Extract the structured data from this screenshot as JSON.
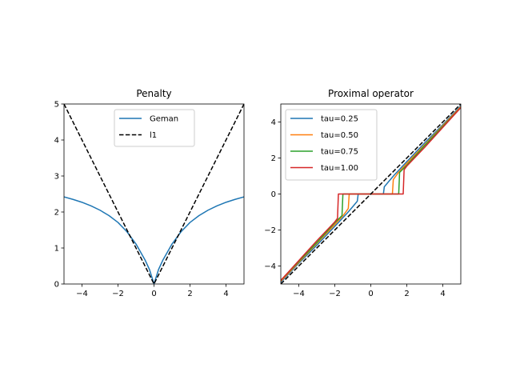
{
  "chart_data": [
    {
      "type": "line",
      "title": "Penalty",
      "xlabel": "",
      "ylabel": "",
      "xlim": [
        -5,
        5
      ],
      "ylim": [
        0,
        5
      ],
      "xticks": [
        -4,
        -2,
        0,
        2,
        4
      ],
      "yticks": [
        0,
        1,
        2,
        3,
        4,
        5
      ],
      "xtick_labels": [
        "−4",
        "−2",
        "0",
        "2",
        "4"
      ],
      "ytick_labels": [
        "0",
        "1",
        "2",
        "3",
        "4",
        "5"
      ],
      "legend_position": "upper center",
      "series": [
        {
          "name": "Geman",
          "color": "#1f77b4",
          "style": "solid",
          "x": [
            -5,
            -4.5,
            -4,
            -3.5,
            -3,
            -2.5,
            -2,
            -1.5,
            -1,
            -0.5,
            -0.25,
            0,
            0.25,
            0.5,
            1,
            1.5,
            2,
            2.5,
            3,
            3.5,
            4,
            4.5,
            5
          ],
          "y": [
            2.42,
            2.35,
            2.27,
            2.17,
            2.05,
            1.9,
            1.71,
            1.45,
            1.11,
            0.67,
            0.4,
            0.0,
            0.4,
            0.67,
            1.11,
            1.45,
            1.71,
            1.9,
            2.05,
            2.17,
            2.27,
            2.35,
            2.42
          ]
        },
        {
          "name": "l1",
          "color": "#000000",
          "style": "dashed",
          "x": [
            -5,
            0,
            5
          ],
          "y": [
            5,
            0,
            5
          ]
        }
      ]
    },
    {
      "type": "line",
      "title": "Proximal operator",
      "xlabel": "",
      "ylabel": "",
      "xlim": [
        -5,
        5
      ],
      "ylim": [
        -5,
        5
      ],
      "xticks": [
        -4,
        -2,
        0,
        2,
        4
      ],
      "yticks": [
        -4,
        -2,
        0,
        2,
        4
      ],
      "xtick_labels": [
        "−4",
        "−2",
        "0",
        "2",
        "4"
      ],
      "ytick_labels": [
        "−4",
        "−2",
        "0",
        "2",
        "4"
      ],
      "legend_position": "upper left",
      "series": [
        {
          "name": "tau=0.25",
          "color": "#1f77b4",
          "style": "solid",
          "x": [
            -5,
            -4,
            -3,
            -2,
            -1.3,
            -1.0,
            -0.75,
            -0.7,
            0,
            0.7,
            0.75,
            1.0,
            1.3,
            2,
            3,
            4,
            5
          ],
          "y": [
            -4.9,
            -3.85,
            -2.85,
            -1.8,
            -1.05,
            -0.7,
            -0.4,
            0,
            0,
            0,
            0.4,
            0.7,
            1.05,
            1.8,
            2.85,
            3.85,
            4.9
          ]
        },
        {
          "name": "tau=0.50",
          "color": "#ff7f0e",
          "style": "solid",
          "x": [
            -5,
            -4,
            -3,
            -2,
            -1.5,
            -1.25,
            -1.2,
            0,
            1.2,
            1.25,
            1.5,
            2,
            3,
            4,
            5
          ],
          "y": [
            -4.85,
            -3.8,
            -2.75,
            -1.7,
            -1.15,
            -0.8,
            0,
            0,
            0,
            0.8,
            1.15,
            1.7,
            2.75,
            3.8,
            4.85
          ]
        },
        {
          "name": "tau=0.75",
          "color": "#2ca02c",
          "style": "solid",
          "x": [
            -5,
            -4,
            -3,
            -2,
            -1.6,
            -1.55,
            0,
            1.55,
            1.6,
            2,
            3,
            4,
            5
          ],
          "y": [
            -4.8,
            -3.75,
            -2.7,
            -1.6,
            -1.2,
            0,
            0,
            0,
            1.2,
            1.6,
            2.7,
            3.75,
            4.8
          ]
        },
        {
          "name": "tau=1.00",
          "color": "#d62728",
          "style": "solid",
          "x": [
            -5,
            -4,
            -3,
            -2,
            -1.85,
            -1.8,
            0,
            1.8,
            1.85,
            2,
            3,
            4,
            5
          ],
          "y": [
            -4.8,
            -3.7,
            -2.6,
            -1.55,
            -1.35,
            0,
            0,
            0,
            1.35,
            1.55,
            2.6,
            3.7,
            4.8
          ]
        },
        {
          "name": "",
          "color": "#000000",
          "style": "dashed",
          "x": [
            -5,
            5
          ],
          "y": [
            -5,
            5
          ]
        }
      ]
    }
  ]
}
